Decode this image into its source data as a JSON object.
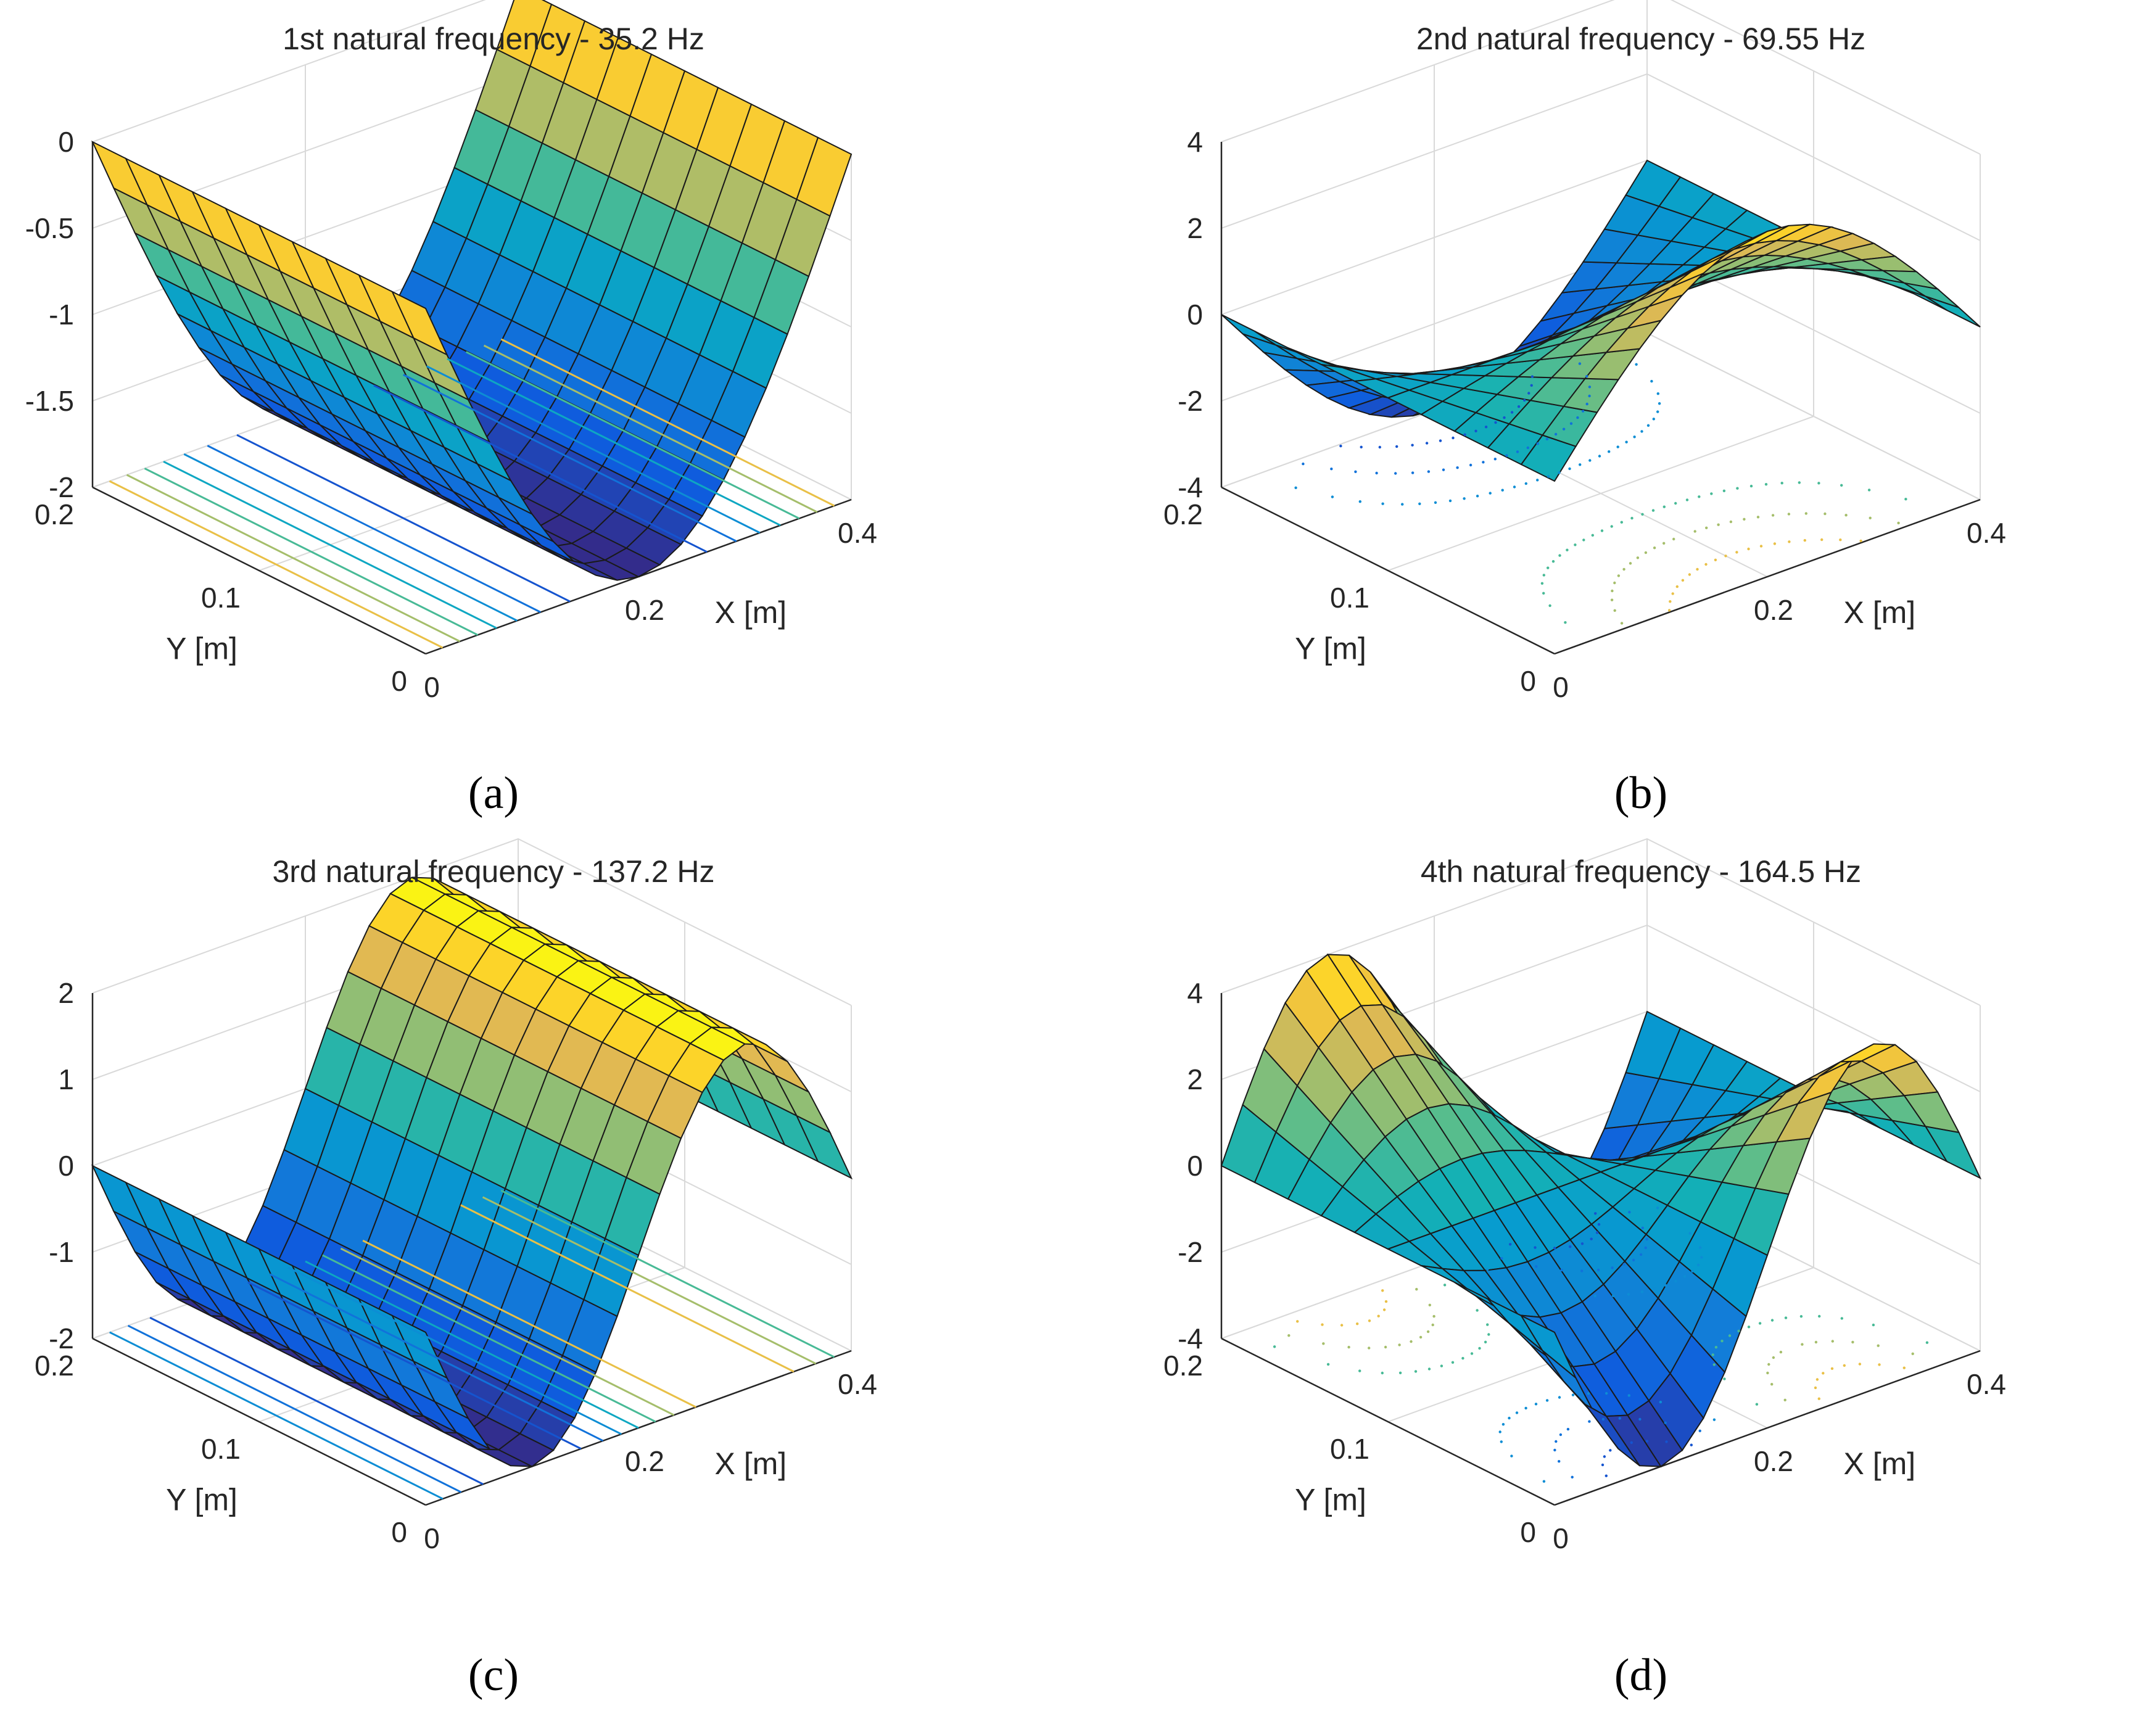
{
  "chart_data": [
    {
      "type": "surface",
      "panel_label": "(a)",
      "panel_letter": "a",
      "title": "1st natural frequency - 35.2 Hz",
      "xlabel": "X [m]",
      "ylabel": "Y [m]",
      "zlabel": "",
      "xlim": [
        0,
        0.4
      ],
      "ylim": [
        0,
        0.2
      ],
      "zlim": [
        -2,
        0
      ],
      "xticks": [
        "0",
        "0.2",
        "0.4"
      ],
      "yticks": [
        "0",
        "0.1",
        "0.2"
      ],
      "zticks": [
        "-2",
        "-1.5",
        "-1",
        "-0.5",
        "0"
      ],
      "grid": true,
      "contour_base": true,
      "colormap": "parula",
      "mode_amplitude": 2,
      "mode_shape": "w(x,y) = -2 * sin(pi * x / 0.4)  (first bending mode, constant along Y, min -2 at X = 0.2)"
    },
    {
      "type": "surface",
      "panel_label": "(b)",
      "panel_letter": "b",
      "title": "2nd natural frequency - 69.55 Hz",
      "xlabel": "X [m]",
      "ylabel": "Y [m]",
      "zlabel": "",
      "xlim": [
        0,
        0.4
      ],
      "ylim": [
        0,
        0.2
      ],
      "zlim": [
        -4,
        4
      ],
      "xticks": [
        "0",
        "0.2",
        "0.4"
      ],
      "yticks": [
        "0",
        "0.1",
        "0.2"
      ],
      "zticks": [
        "-4",
        "-2",
        "0",
        "2",
        "4"
      ],
      "grid": true,
      "contour_base": true,
      "colormap": "parula",
      "mode_amplitude": 4,
      "mode_shape": "w(x,y) = 4 * sin(pi * x / 0.4) * (1 - 2 * y / 0.2)  (torsion mode, +4 at Y = 0.2, -4 at Y = 0)"
    },
    {
      "type": "surface",
      "panel_label": "(c)",
      "panel_letter": "c",
      "title": "3rd natural frequency - 137.2 Hz",
      "xlabel": "X [m]",
      "ylabel": "Y [m]",
      "zlabel": "",
      "xlim": [
        0,
        0.4
      ],
      "ylim": [
        0,
        0.2
      ],
      "zlim": [
        -2,
        2
      ],
      "xticks": [
        "0",
        "0.2",
        "0.4"
      ],
      "yticks": [
        "0",
        "0.1",
        "0.2"
      ],
      "zticks": [
        "-2",
        "-1",
        "0",
        "1",
        "2"
      ],
      "grid": true,
      "contour_base": true,
      "colormap": "parula",
      "mode_amplitude": 2,
      "mode_shape": "w(x,y) = -2 * sin(2 * pi * x / 0.4)  (second bending mode, min -2 at X = 0.1, max +2 at X = 0.3)"
    },
    {
      "type": "surface",
      "panel_label": "(d)",
      "panel_letter": "d",
      "title": "4th natural frequency - 164.5 Hz",
      "xlabel": "X [m]",
      "ylabel": "Y [m]",
      "zlabel": "",
      "xlim": [
        0,
        0.4
      ],
      "ylim": [
        0,
        0.2
      ],
      "zlim": [
        -4,
        4
      ],
      "xticks": [
        "0",
        "0.2",
        "0.4"
      ],
      "yticks": [
        "0",
        "0.1",
        "0.2"
      ],
      "zticks": [
        "-4",
        "-2",
        "0",
        "2",
        "4"
      ],
      "grid": true,
      "contour_base": true,
      "colormap": "parula",
      "mode_amplitude": 4,
      "mode_shape": "w(x,y) = 4 * sin(2 * pi * x / 0.4) * (2 * y / 0.2 - 1)  (second torsion mode, +4 / -4 lobes)"
    }
  ]
}
